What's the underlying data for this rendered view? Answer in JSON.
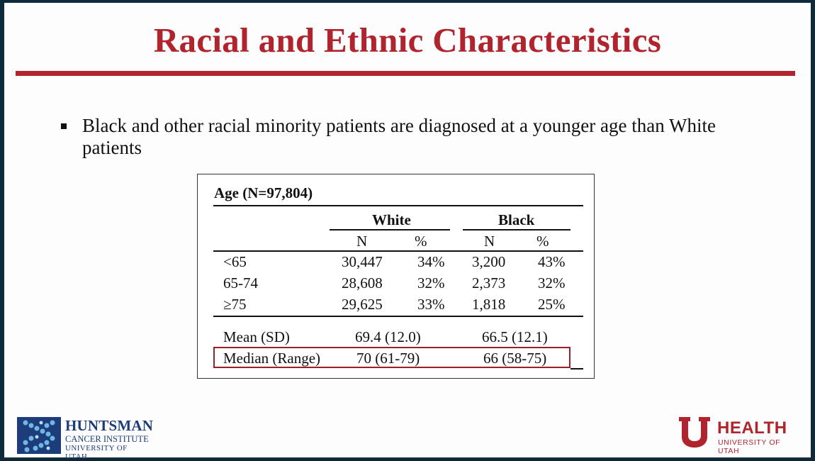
{
  "slide": {
    "title": "Racial and Ethnic Characteristics",
    "bullet": "Black and other racial minority patients are diagnosed at a younger age than White patients"
  },
  "table": {
    "title": "Age (N=97,804)",
    "groups": [
      "White",
      "Black"
    ],
    "subheaders": [
      "N",
      "%",
      "N",
      "%"
    ],
    "rows": [
      {
        "label": "<65",
        "values": [
          "30,447",
          "34%",
          "3,200",
          "43%"
        ]
      },
      {
        "label": "65-74",
        "values": [
          "28,608",
          "32%",
          "2,373",
          "32%"
        ]
      },
      {
        "label": "≥75",
        "values": [
          "29,625",
          "33%",
          "1,818",
          "25%"
        ]
      }
    ],
    "summary": [
      {
        "label": "Mean (SD)",
        "white": "69.4 (12.0)",
        "black": "66.5 (12.1)"
      },
      {
        "label": "Median (Range)",
        "white": "70 (61-79)",
        "black": "66 (58-75)"
      }
    ]
  },
  "logos": {
    "left": {
      "name": "HUNTSMAN",
      "line1": "CANCER INSTITUTE",
      "line2": "UNIVERSITY OF UTAH"
    },
    "right": {
      "name": "HEALTH",
      "line1": "UNIVERSITY OF UTAH"
    }
  },
  "colors": {
    "accent": "#b0242e",
    "logo_blue": "#1c3c7a"
  }
}
